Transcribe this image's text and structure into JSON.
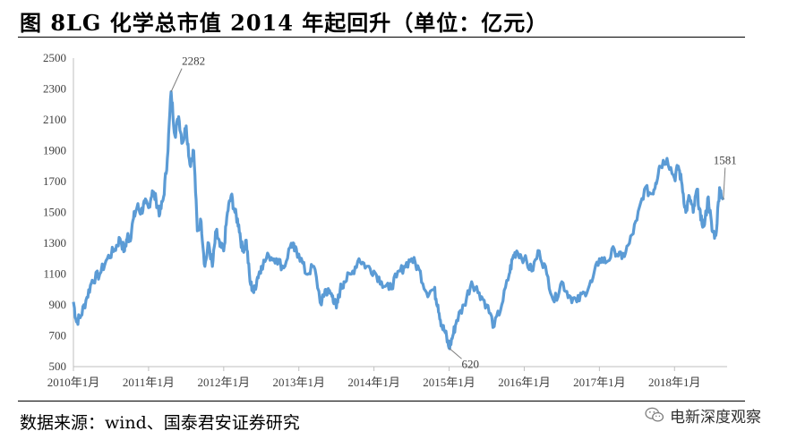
{
  "header": {
    "title": "图 8LG 化学总市值 2014 年起回升（单位：亿元）"
  },
  "footer": {
    "source": "数据来源：wind、国泰君安证券研究",
    "watermark": "电新深度观察",
    "watermark_icon": "wechat-icon"
  },
  "chart_data": {
    "type": "line",
    "title": "图 8LG 化学总市值 2014 年起回升（单位：亿元）",
    "xlabel": "",
    "ylabel": "",
    "ylim": [
      500,
      2500
    ],
    "yticks": [
      500,
      700,
      900,
      1100,
      1300,
      1500,
      1700,
      1900,
      2100,
      2300,
      2500
    ],
    "xlim": [
      "2010-01",
      "2018-09"
    ],
    "x_ticks": [
      "2010年1月",
      "2011年1月",
      "2012年1月",
      "2013年1月",
      "2014年1月",
      "2015年1月",
      "2016年1月",
      "2017年1月",
      "2018年1月"
    ],
    "grid": false,
    "legend": "none",
    "line_color": "#5b9bd5",
    "series": [
      {
        "x": [
          2010.0,
          2010.04,
          2010.1,
          2010.18,
          2010.25,
          2010.35,
          2010.45,
          2010.55,
          2010.62,
          2010.68,
          2010.72,
          2010.75,
          2010.8,
          2010.85,
          2010.9,
          2010.95,
          2011.0,
          2011.05,
          2011.1,
          2011.15,
          2011.2,
          2011.25,
          2011.3,
          2011.35,
          2011.4,
          2011.45,
          2011.5,
          2011.55,
          2011.6,
          2011.65,
          2011.7,
          2011.75,
          2011.8,
          2011.85,
          2011.9,
          2011.95,
          2012.0,
          2012.05,
          2012.1,
          2012.15,
          2012.2,
          2012.25,
          2012.3,
          2012.35,
          2012.4,
          2012.45,
          2012.5,
          2012.6,
          2012.7,
          2012.8,
          2012.9,
          2012.95,
          2013.0,
          2013.1,
          2013.2,
          2013.3,
          2013.35,
          2013.4,
          2013.45,
          2013.5,
          2013.55,
          2013.6,
          2013.7,
          2013.8,
          2013.9,
          2014.0,
          2014.1,
          2014.2,
          2014.3,
          2014.4,
          2014.5,
          2014.6,
          2014.7,
          2014.8,
          2014.85,
          2014.9,
          2014.95,
          2015.0,
          2015.05,
          2015.1,
          2015.2,
          2015.3,
          2015.4,
          2015.5,
          2015.6,
          2015.7,
          2015.8,
          2015.85,
          2015.9,
          2016.0,
          2016.1,
          2016.2,
          2016.3,
          2016.4,
          2016.5,
          2016.6,
          2016.7,
          2016.8,
          2016.9,
          2017.0,
          2017.1,
          2017.2,
          2017.3,
          2017.4,
          2017.5,
          2017.6,
          2017.7,
          2017.75,
          2017.8,
          2017.9,
          2018.0,
          2018.05,
          2018.1,
          2018.15,
          2018.2,
          2018.25,
          2018.3,
          2018.35,
          2018.4,
          2018.45,
          2018.5,
          2018.55,
          2018.6,
          2018.65
        ],
        "values": [
          920,
          790,
          830,
          950,
          1060,
          1100,
          1200,
          1260,
          1330,
          1250,
          1350,
          1320,
          1460,
          1540,
          1500,
          1560,
          1530,
          1640,
          1580,
          1490,
          1600,
          1850,
          2282,
          2000,
          2120,
          1950,
          2060,
          1810,
          1900,
          1380,
          1440,
          1150,
          1300,
          1150,
          1380,
          1280,
          1250,
          1500,
          1610,
          1500,
          1420,
          1250,
          1320,
          1050,
          980,
          1080,
          1150,
          1220,
          1200,
          1140,
          1300,
          1250,
          1230,
          1100,
          1150,
          900,
          1000,
          980,
          960,
          880,
          1000,
          1050,
          1100,
          1200,
          1150,
          1120,
          1050,
          1000,
          1080,
          1150,
          1200,
          1130,
          980,
          1000,
          900,
          770,
          720,
          620,
          700,
          800,
          900,
          1050,
          980,
          900,
          760,
          900,
          1100,
          1210,
          1250,
          1200,
          1120,
          1250,
          1100,
          920,
          1050,
          960,
          920,
          980,
          1050,
          1200,
          1180,
          1260,
          1200,
          1300,
          1450,
          1650,
          1620,
          1690,
          1800,
          1850,
          1720,
          1800,
          1680,
          1500,
          1600,
          1500,
          1650,
          1450,
          1420,
          1600,
          1380,
          1350,
          1660,
          1581
        ]
      }
    ],
    "annotations": [
      {
        "label": "2282",
        "x": 2011.3,
        "y": 2282
      },
      {
        "label": "620",
        "x": 2015.0,
        "y": 620
      },
      {
        "label": "1581",
        "x": 2018.65,
        "y": 1581
      }
    ]
  }
}
